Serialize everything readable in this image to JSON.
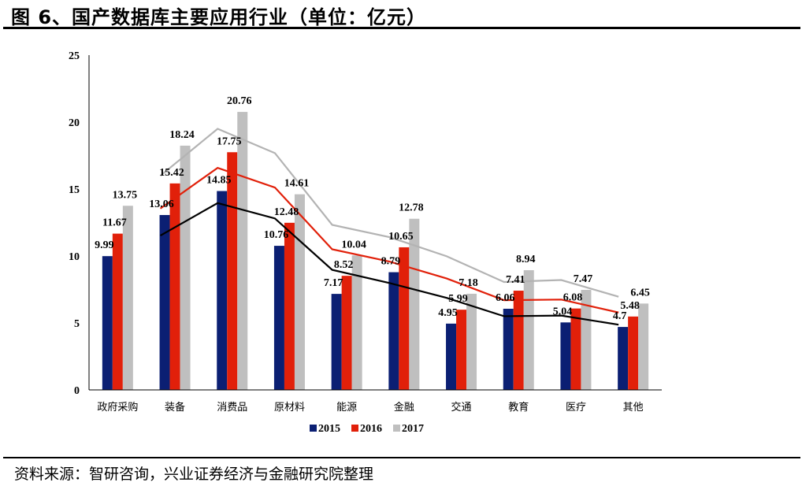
{
  "header": {
    "title": "图 6、国产数据库主要应用行业（单位：亿元）"
  },
  "footer": {
    "source": "资料来源：智研咨询，兴业证券经济与金融研究院整理"
  },
  "chart_data": {
    "type": "bar",
    "title": "图 6、国产数据库主要应用行业（单位：亿元）",
    "xlabel": "",
    "ylabel": "",
    "ylim": [
      0,
      25
    ],
    "yticks": [
      0,
      5,
      10,
      15,
      20,
      25
    ],
    "grid": false,
    "legend_position": "bottom",
    "categories": [
      "政府采购",
      "装备",
      "消费品",
      "原材料",
      "能源",
      "金融",
      "交通",
      "教育",
      "医疗",
      "其他"
    ],
    "series": [
      {
        "name": "2015",
        "color": "#0b1f73",
        "values": [
          9.99,
          13.06,
          14.85,
          10.76,
          7.17,
          8.79,
          4.95,
          6.06,
          5.04,
          4.7
        ]
      },
      {
        "name": "2016",
        "color": "#e1200a",
        "values": [
          11.67,
          15.42,
          17.75,
          12.48,
          8.52,
          10.65,
          5.99,
          7.41,
          6.08,
          5.48
        ]
      },
      {
        "name": "2017",
        "color": "#bfbfbf",
        "values": [
          13.75,
          18.24,
          20.76,
          14.61,
          10.04,
          12.78,
          7.18,
          8.94,
          7.47,
          6.45
        ]
      }
    ],
    "trendlines": [
      {
        "series": "2015",
        "type": "2-period moving average",
        "color": "#000000"
      },
      {
        "series": "2016",
        "type": "2-period moving average",
        "color": "#e1200a"
      },
      {
        "series": "2017",
        "type": "2-period moving average",
        "color": "#b3b3b3"
      }
    ],
    "labels": [
      [
        "9.99",
        "13.06",
        "14.85",
        "10.76",
        "7.17",
        "8.79",
        "4.95",
        "6.06",
        "5.04",
        "4.7"
      ],
      [
        "11.67",
        "15.42",
        "17.75",
        "12.48",
        "8.52",
        "10.65",
        "5.99",
        "7.41",
        "6.08",
        "5.48"
      ],
      [
        "13.75",
        "18.24",
        "20.76",
        "14.61",
        "10.04",
        "12.78",
        "7.18",
        "8.94",
        "7.47",
        "6.45"
      ]
    ]
  }
}
